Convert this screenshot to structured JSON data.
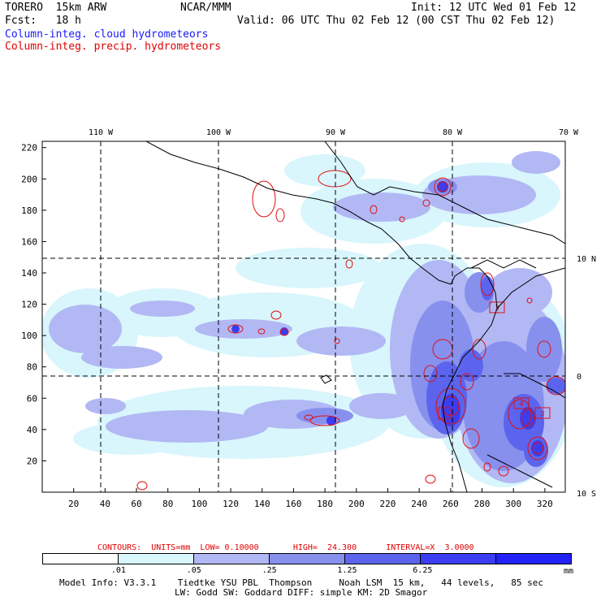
{
  "header": {
    "model": "TORERO  15km ARW",
    "org": "NCAR/MMM",
    "init": "Init: 12 UTC Wed 01 Feb 12",
    "fcst": "Fcst:   18 h",
    "valid": "Valid: 06 UTC Thu 02 Feb 12 (00 CST Thu 02 Feb 12)",
    "field_cloud": "Column-integ. cloud hydrometeors",
    "field_precip": "Column-integ. precip. hydrometeors"
  },
  "map": {
    "lon_labels": [
      "110 W",
      "100 W",
      "90 W",
      "80 W",
      "70 W"
    ],
    "lat_labels": [
      "10 N",
      "0",
      "10 S"
    ],
    "y_ticks": [
      20,
      40,
      60,
      80,
      100,
      120,
      140,
      160,
      180,
      200,
      220
    ],
    "x_ticks": [
      20,
      40,
      60,
      80,
      100,
      120,
      140,
      160,
      180,
      200,
      220,
      240,
      260,
      280,
      300,
      320
    ],
    "storm_labels": [
      "3",
      "4",
      "3"
    ],
    "colors": {
      "level1": "#d8f6fc",
      "level2": "#b2b8f4",
      "level3": "#8890ee",
      "level4": "#5c64ee",
      "level5": "#3a3ef0",
      "level6": "#2222f8",
      "contour": "#e01010"
    }
  },
  "legend": {
    "contours_line": "CONTOURS:  UNITS=mm  LOW= 0.10000       HIGH=  24.300      INTERVAL=X  3.0000",
    "tick_labels": [
      ".01",
      ".05",
      ".25",
      "1.25",
      "6.25"
    ],
    "unit": "mm",
    "colors": [
      "#ffffff",
      "#d8f6fc",
      "#b2b8f4",
      "#8890ee",
      "#5c64ee",
      "#3a3ef0",
      "#2222f8"
    ]
  },
  "footer": {
    "line1": "Model Info: V3.3.1    Tiedtke YSU PBL  Thompson     Noah LSM  15 km,   44 levels,   85 sec",
    "line2": "LW: Godd SW: Goddard DIFF: simple KM: 2D Smagor"
  }
}
